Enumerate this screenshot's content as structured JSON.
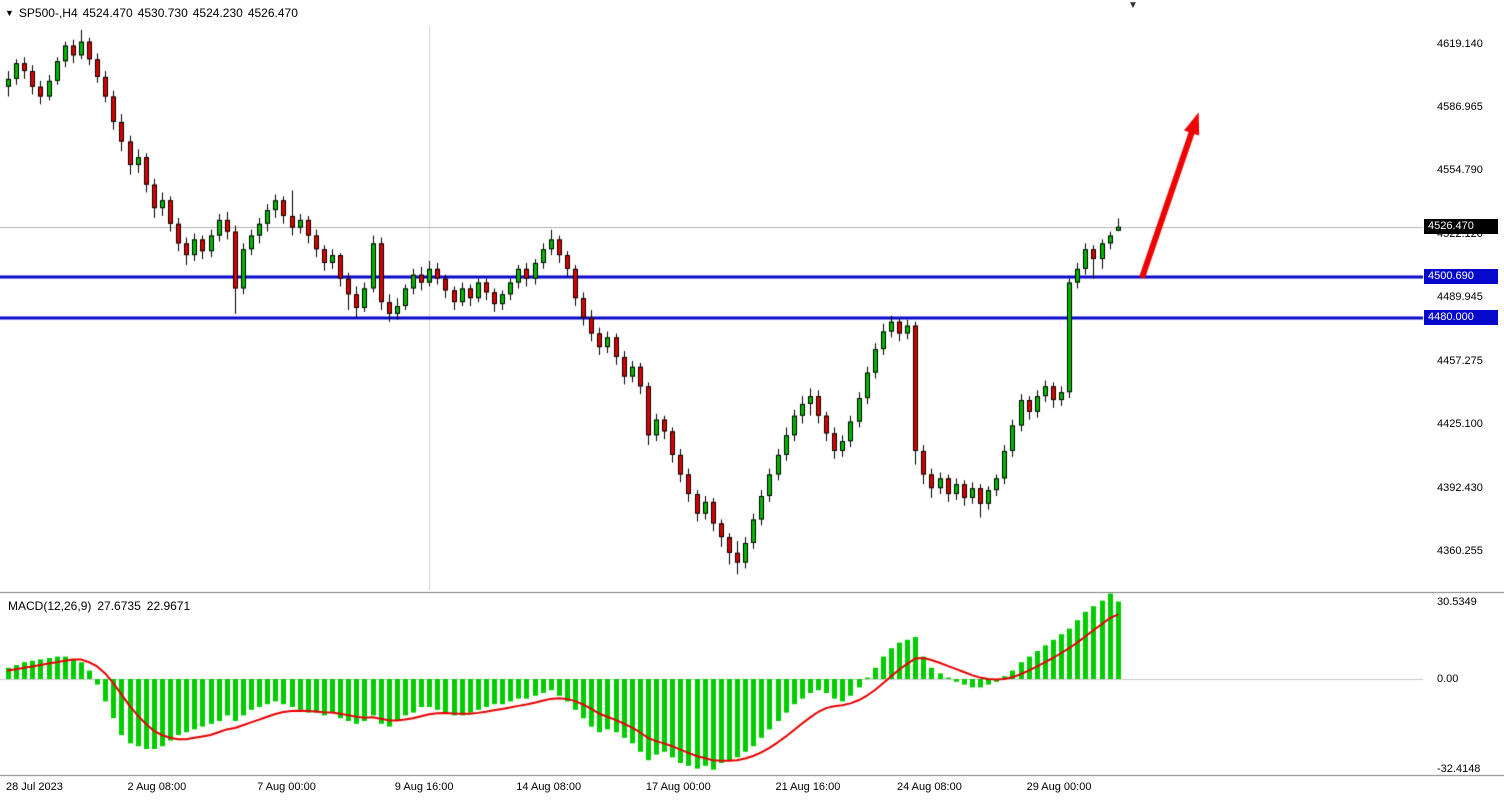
{
  "header": {
    "symbol_tf": "SP500-,H4",
    "open": "4524.470",
    "high": "4530.730",
    "low": "4524.230",
    "close": "4526.470"
  },
  "macd_panel": {
    "label": "MACD(12,26,9)",
    "main_value": "27.6735",
    "signal_value": "22.9671",
    "scale": [
      {
        "text": "30.5349",
        "value": 30.5349
      },
      {
        "text": "0.00",
        "value": 0
      },
      {
        "text": "-32.4148",
        "value": -32.4148
      }
    ]
  },
  "colors": {
    "bull": "#00b800",
    "bear": "#dc0000",
    "wick": "#000000",
    "hist": "#00cc00",
    "signal": "#e60000",
    "level": "#0808cc",
    "current_line": "#b4b4b4",
    "zero_line": "#c8c8c8",
    "vline": "#d6d6d6",
    "arrow": "#f00000",
    "separator": "#808080",
    "tag_current_bg": "#000000",
    "tag_level_bg": "#0808cc",
    "tag_text": "#ffffff"
  },
  "chart_data": {
    "type": "candlestick",
    "title": "SP500-,H4",
    "symbol": "SP500-",
    "timeframe": "H4",
    "last_ohlc": {
      "open": 4524.47,
      "high": 4530.73,
      "low": 4524.23,
      "close": 4526.47
    },
    "price_range": [
      4341,
      4629
    ],
    "price_axis_ticks": [
      4619.14,
      4586.965,
      4554.79,
      4522.12,
      4489.945,
      4457.275,
      4425.1,
      4392.43,
      4360.255
    ],
    "horizontal_levels": [
      4500.69,
      4480.0
    ],
    "current_price": 4526.47,
    "vertical_separator_index": 52,
    "arrow": {
      "from": [
        140,
        4500.5
      ],
      "to": [
        147,
        4585
      ]
    },
    "time_labels": [
      {
        "text": "28 Jul 2023",
        "index": 0
      },
      {
        "text": "2 Aug 08:00",
        "index": 15
      },
      {
        "text": "7 Aug 00:00",
        "index": 31
      },
      {
        "text": "9 Aug 16:00",
        "index": 48
      },
      {
        "text": "14 Aug 08:00",
        "index": 63
      },
      {
        "text": "17 Aug 00:00",
        "index": 79
      },
      {
        "text": "21 Aug 16:00",
        "index": 95
      },
      {
        "text": "24 Aug 08:00",
        "index": 110
      },
      {
        "text": "29 Aug 00:00",
        "index": 126
      }
    ],
    "candles": [
      [
        4598,
        4606,
        4593,
        4602
      ],
      [
        4602,
        4612,
        4599,
        4610
      ],
      [
        4610,
        4613,
        4602,
        4606
      ],
      [
        4606,
        4609,
        4594,
        4598
      ],
      [
        4598,
        4601,
        4589,
        4593
      ],
      [
        4593,
        4604,
        4591,
        4601
      ],
      [
        4601,
        4613,
        4599,
        4611
      ],
      [
        4611,
        4621,
        4608,
        4619
      ],
      [
        4619,
        4622,
        4610,
        4614
      ],
      [
        4614,
        4627,
        4612,
        4621
      ],
      [
        4621,
        4623,
        4609,
        4612
      ],
      [
        4612,
        4615,
        4600,
        4603
      ],
      [
        4603,
        4606,
        4590,
        4593
      ],
      [
        4593,
        4596,
        4576,
        4580
      ],
      [
        4580,
        4584,
        4565,
        4570
      ],
      [
        4570,
        4573,
        4553,
        4558
      ],
      [
        4558,
        4566,
        4554,
        4562
      ],
      [
        4562,
        4564,
        4544,
        4548
      ],
      [
        4548,
        4551,
        4531,
        4536
      ],
      [
        4536,
        4544,
        4532,
        4540
      ],
      [
        4540,
        4542,
        4524,
        4528
      ],
      [
        4528,
        4531,
        4514,
        4518
      ],
      [
        4518,
        4521,
        4507,
        4512
      ],
      [
        4512,
        4523,
        4509,
        4520
      ],
      [
        4520,
        4522,
        4510,
        4514
      ],
      [
        4514,
        4525,
        4511,
        4522
      ],
      [
        4522,
        4533,
        4519,
        4530
      ],
      [
        4530,
        4534,
        4520,
        4524
      ],
      [
        4524,
        4527,
        4482,
        4495
      ],
      [
        4495,
        4518,
        4492,
        4515
      ],
      [
        4515,
        4525,
        4512,
        4522
      ],
      [
        4522,
        4531,
        4518,
        4528
      ],
      [
        4528,
        4538,
        4524,
        4535
      ],
      [
        4535,
        4543,
        4531,
        4540
      ],
      [
        4540,
        4542,
        4528,
        4532
      ],
      [
        4532,
        4545,
        4522,
        4526
      ],
      [
        4526,
        4533,
        4523,
        4530
      ],
      [
        4530,
        4532,
        4518,
        4522
      ],
      [
        4522,
        4525,
        4511,
        4515
      ],
      [
        4515,
        4517,
        4504,
        4508
      ],
      [
        4508,
        4515,
        4505,
        4512
      ],
      [
        4512,
        4513,
        4496,
        4500
      ],
      [
        4500,
        4503,
        4484,
        4492
      ],
      [
        4492,
        4496,
        4480,
        4485
      ],
      [
        4485,
        4498,
        4483,
        4495
      ],
      [
        4495,
        4522,
        4493,
        4518
      ],
      [
        4518,
        4521,
        4484,
        4488
      ],
      [
        4488,
        4492,
        4478,
        4482
      ],
      [
        4482,
        4490,
        4479,
        4486
      ],
      [
        4486,
        4497,
        4484,
        4495
      ],
      [
        4495,
        4505,
        4492,
        4502
      ],
      [
        4502,
        4506,
        4494,
        4498
      ],
      [
        4498,
        4509,
        4496,
        4505
      ],
      [
        4505,
        4508,
        4497,
        4500
      ],
      [
        4500,
        4502,
        4490,
        4494
      ],
      [
        4494,
        4496,
        4484,
        4488
      ],
      [
        4488,
        4498,
        4486,
        4495
      ],
      [
        4495,
        4497,
        4486,
        4490
      ],
      [
        4490,
        4500,
        4488,
        4498
      ],
      [
        4498,
        4500,
        4489,
        4493
      ],
      [
        4493,
        4495,
        4483,
        4487
      ],
      [
        4487,
        4494,
        4484,
        4492
      ],
      [
        4492,
        4500,
        4489,
        4498
      ],
      [
        4498,
        4507,
        4495,
        4505
      ],
      [
        4505,
        4508,
        4496,
        4500
      ],
      [
        4500,
        4510,
        4497,
        4508
      ],
      [
        4508,
        4518,
        4505,
        4515
      ],
      [
        4515,
        4525,
        4512,
        4520
      ],
      [
        4520,
        4522,
        4508,
        4512
      ],
      [
        4512,
        4514,
        4501,
        4505
      ],
      [
        4505,
        4507,
        4486,
        4490
      ],
      [
        4490,
        4493,
        4476,
        4480
      ],
      [
        4480,
        4484,
        4468,
        4472
      ],
      [
        4472,
        4475,
        4461,
        4465
      ],
      [
        4465,
        4473,
        4462,
        4470
      ],
      [
        4470,
        4472,
        4456,
        4460
      ],
      [
        4460,
        4463,
        4446,
        4450
      ],
      [
        4450,
        4458,
        4447,
        4455
      ],
      [
        4455,
        4457,
        4441,
        4445
      ],
      [
        4445,
        4447,
        4415,
        4420
      ],
      [
        4420,
        4431,
        4417,
        4428
      ],
      [
        4428,
        4430,
        4418,
        4422
      ],
      [
        4422,
        4424,
        4406,
        4410
      ],
      [
        4410,
        4413,
        4396,
        4400
      ],
      [
        4400,
        4403,
        4386,
        4390
      ],
      [
        4390,
        4392,
        4376,
        4380
      ],
      [
        4380,
        4389,
        4377,
        4386
      ],
      [
        4386,
        4388,
        4371,
        4375
      ],
      [
        4375,
        4377,
        4363,
        4368
      ],
      [
        4368,
        4370,
        4354,
        4360
      ],
      [
        4360,
        4366,
        4349,
        4355
      ],
      [
        4355,
        4368,
        4352,
        4365
      ],
      [
        4365,
        4380,
        4362,
        4377
      ],
      [
        4377,
        4392,
        4374,
        4389
      ],
      [
        4389,
        4403,
        4386,
        4400
      ],
      [
        4400,
        4413,
        4397,
        4410
      ],
      [
        4410,
        4424,
        4407,
        4420
      ],
      [
        4420,
        4433,
        4417,
        4430
      ],
      [
        4430,
        4440,
        4426,
        4436
      ],
      [
        4436,
        4444,
        4430,
        4440
      ],
      [
        4440,
        4443,
        4426,
        4430
      ],
      [
        4430,
        4432,
        4417,
        4421
      ],
      [
        4421,
        4424,
        4408,
        4412
      ],
      [
        4412,
        4420,
        4409,
        4417
      ],
      [
        4417,
        4430,
        4414,
        4427
      ],
      [
        4427,
        4442,
        4424,
        4439
      ],
      [
        4439,
        4455,
        4436,
        4452
      ],
      [
        4452,
        4467,
        4449,
        4464
      ],
      [
        4464,
        4477,
        4461,
        4473
      ],
      [
        4473,
        4481,
        4470,
        4478
      ],
      [
        4478,
        4480,
        4468,
        4472
      ],
      [
        4472,
        4479,
        4469,
        4476
      ],
      [
        4476,
        4478,
        4405,
        4412
      ],
      [
        4412,
        4415,
        4395,
        4400
      ],
      [
        4400,
        4403,
        4388,
        4393
      ],
      [
        4393,
        4401,
        4390,
        4398
      ],
      [
        4398,
        4400,
        4386,
        4390
      ],
      [
        4390,
        4398,
        4387,
        4395
      ],
      [
        4395,
        4397,
        4384,
        4388
      ],
      [
        4388,
        4396,
        4385,
        4393
      ],
      [
        4393,
        4395,
        4378,
        4385
      ],
      [
        4385,
        4394,
        4382,
        4392
      ],
      [
        4392,
        4400,
        4389,
        4398
      ],
      [
        4398,
        4415,
        4395,
        4412
      ],
      [
        4412,
        4428,
        4409,
        4425
      ],
      [
        4425,
        4441,
        4422,
        4438
      ],
      [
        4438,
        4440,
        4428,
        4432
      ],
      [
        4432,
        4443,
        4429,
        4440
      ],
      [
        4440,
        4448,
        4437,
        4445
      ],
      [
        4445,
        4447,
        4434,
        4438
      ],
      [
        4438,
        4445,
        4435,
        4442
      ],
      [
        4442,
        4500,
        4439,
        4498
      ],
      [
        4498,
        4508,
        4495,
        4505
      ],
      [
        4505,
        4518,
        4502,
        4515
      ],
      [
        4515,
        4517,
        4500,
        4510
      ],
      [
        4510,
        4520,
        4505,
        4518
      ],
      [
        4518,
        4524,
        4515,
        4522
      ],
      [
        4524.47,
        4530.73,
        4524.23,
        4526.47
      ]
    ],
    "macd": {
      "params": "12,26,9",
      "scale_max": 30.5349,
      "scale_min": -32.4148,
      "last_main": 27.6735,
      "last_signal": 22.9671,
      "histogram": [
        4,
        5,
        6,
        6.5,
        7,
        7.5,
        8,
        8,
        7,
        6,
        3,
        -2,
        -8,
        -14,
        -20,
        -23,
        -24,
        -25,
        -25,
        -24,
        -22,
        -20,
        -19,
        -18,
        -17,
        -16,
        -15,
        -13,
        -15,
        -13,
        -11,
        -10,
        -9,
        -8,
        -9,
        -10,
        -11,
        -12,
        -12,
        -13,
        -12,
        -14,
        -15,
        -16,
        -15,
        -13,
        -16,
        -17,
        -15,
        -13,
        -12,
        -10,
        -10,
        -11,
        -12,
        -13,
        -13,
        -12,
        -11,
        -10,
        -9,
        -9,
        -8,
        -7,
        -7,
        -6,
        -5,
        -4,
        -6,
        -8,
        -11,
        -14,
        -17,
        -19,
        -18,
        -19,
        -21,
        -23,
        -26,
        -29,
        -27,
        -26,
        -28,
        -30,
        -31,
        -32,
        -31,
        -32.4,
        -30,
        -29,
        -28,
        -26,
        -24,
        -21,
        -18,
        -15,
        -12,
        -9,
        -7,
        -5,
        -4,
        -5,
        -7,
        -8,
        -6,
        -3,
        0.5,
        4,
        8,
        11,
        13,
        14,
        15,
        8,
        4,
        2,
        0.5,
        -1,
        -2,
        -3,
        -3,
        -2,
        -1,
        1,
        3,
        6,
        8,
        10,
        12,
        14,
        16,
        18,
        21,
        24,
        26,
        28,
        30.53,
        27.67
      ],
      "signal": [
        3,
        3.5,
        4,
        4.5,
        5,
        5.5,
        6,
        6.5,
        7,
        7,
        6,
        4.5,
        2,
        -1.5,
        -5.5,
        -9.5,
        -13,
        -16,
        -18.5,
        -20,
        -21,
        -21.5,
        -21.5,
        -21,
        -20.5,
        -20,
        -19,
        -18,
        -17.5,
        -16.5,
        -15.5,
        -14.5,
        -13.5,
        -12.5,
        -11.8,
        -11.4,
        -11.3,
        -11.4,
        -11.6,
        -11.9,
        -12,
        -12.4,
        -12.9,
        -13.5,
        -13.8,
        -13.7,
        -14.2,
        -14.7,
        -14.8,
        -14.5,
        -14,
        -13.3,
        -12.6,
        -12.2,
        -12.1,
        -12.3,
        -12.4,
        -12.4,
        -12.1,
        -11.7,
        -11.2,
        -10.7,
        -10.2,
        -9.6,
        -9.1,
        -8.5,
        -7.8,
        -7.1,
        -6.9,
        -7.1,
        -7.9,
        -9.1,
        -10.7,
        -12.4,
        -13.5,
        -14.6,
        -15.9,
        -17.3,
        -19,
        -21,
        -22.2,
        -23,
        -24,
        -25.2,
        -26.4,
        -27.5,
        -28.2,
        -29,
        -29.2,
        -29.2,
        -29,
        -28.4,
        -27.5,
        -26.2,
        -24.6,
        -22.7,
        -20.6,
        -18.3,
        -16,
        -13.8,
        -11.8,
        -10.4,
        -9.7,
        -9.4,
        -8.7,
        -7.6,
        -6,
        -4,
        -1.6,
        0.9,
        3.3,
        5.4,
        7.3,
        7.5,
        6.8,
        5.8,
        4.7,
        3.6,
        2.5,
        1.4,
        0.5,
        0,
        -0.2,
        0,
        0.6,
        1.7,
        3,
        4.4,
        5.9,
        7.5,
        9.2,
        11,
        13,
        15.2,
        17.4,
        19.5,
        21.7,
        22.97
      ]
    }
  }
}
